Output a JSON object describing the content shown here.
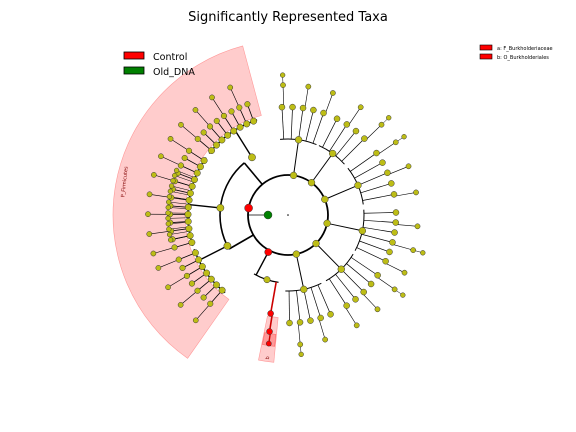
{
  "chart_data": {
    "type": "cladogram",
    "title": "Significantly Represented Taxa",
    "legend": {
      "placement": "top-left",
      "entries": [
        {
          "label": "Control",
          "color": "#ff0000"
        },
        {
          "label": "Old_DNA",
          "color": "#008000"
        }
      ]
    },
    "taxa_key": {
      "placement": "top-right",
      "entries": [
        {
          "label": "a: F_Burkholderiaceae",
          "color": "#ff0000"
        },
        {
          "label": "b: O_Burkholderiales",
          "color": "#ff0000"
        }
      ]
    },
    "highlighted_clades": [
      {
        "label": "P_Firmicutes",
        "group": "Control",
        "color": "#ffcccc"
      },
      {
        "label": "a",
        "taxon": "F_Burkholderiaceae",
        "group": "Control",
        "color": "#ff9999"
      },
      {
        "label": "b",
        "taxon": "O_Burkholderiales",
        "group": "Control",
        "color": "#ffcccc"
      }
    ],
    "node_colors": {
      "default": "#bdbd16",
      "Control": "#ff0000",
      "Old_DNA": "#008000"
    }
  }
}
